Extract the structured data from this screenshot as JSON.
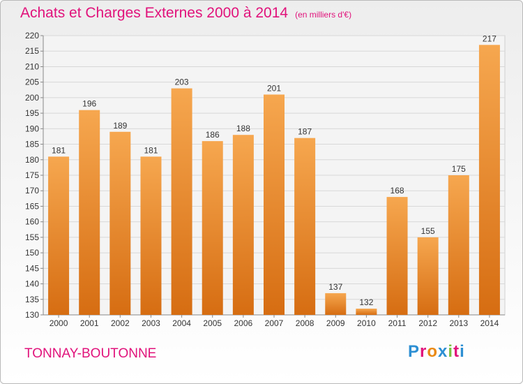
{
  "title": "Achats et Charges Externes 2000 à 2014",
  "unit_note": "(en milliers d'€)",
  "commune": "TONNAY-BOUTONNE",
  "logo": {
    "text": "Proxiti",
    "colors": [
      "#2d8fd3",
      "#e1127b",
      "#ea8a15",
      "#2d8fd3",
      "#7ac143",
      "#e1127b",
      "#2d8fd3"
    ]
  },
  "colors": {
    "bar": "#ec8a33",
    "title": "#e1127b",
    "grid": "#d8d8d8"
  },
  "chart_data": {
    "type": "bar",
    "categories": [
      "2000",
      "2001",
      "2002",
      "2003",
      "2004",
      "2005",
      "2006",
      "2007",
      "2008",
      "2009",
      "2010",
      "2011",
      "2012",
      "2013",
      "2014"
    ],
    "values": [
      181,
      196,
      189,
      181,
      203,
      186,
      188,
      201,
      187,
      137,
      132,
      168,
      155,
      175,
      217
    ],
    "ylim": [
      130,
      220
    ],
    "ytick_step": 5,
    "grid": true,
    "data_labels": true
  }
}
